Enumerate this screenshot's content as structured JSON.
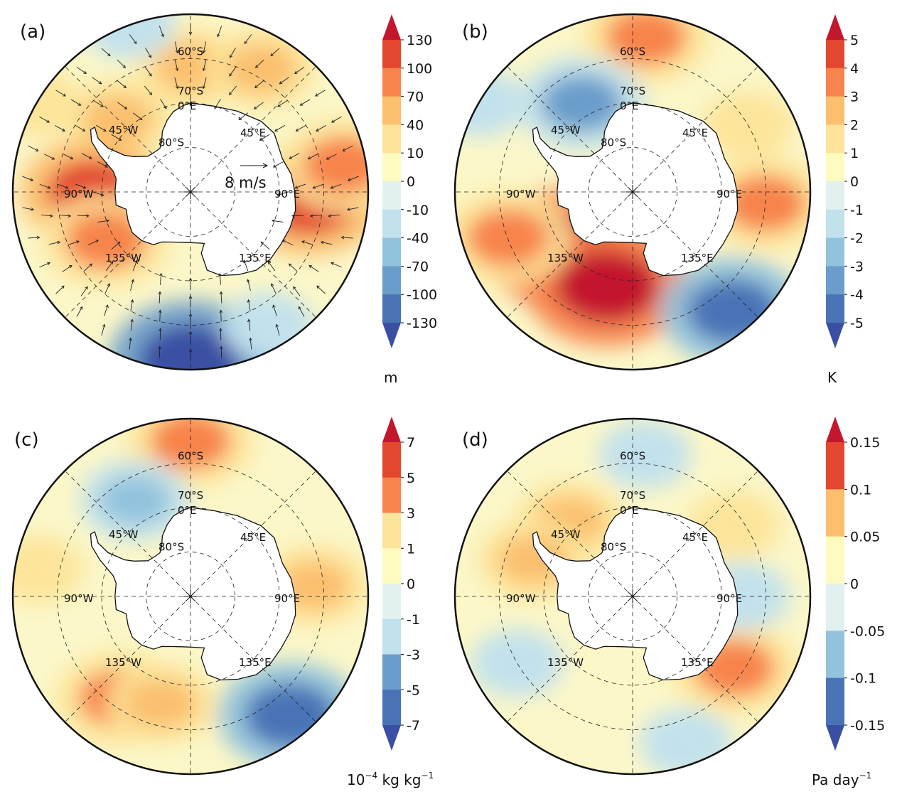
{
  "panels": [
    {
      "id": "a",
      "label": "(a)",
      "unit": "m",
      "unit_sup": "",
      "unit_after": "",
      "colorbar_ticks": [
        "130",
        "100",
        "70",
        "40",
        "10",
        "0",
        "-10",
        "-40",
        "-70",
        "-100",
        "-130"
      ],
      "vector_reference": "8 m/s",
      "has_vectors": true,
      "anomalies": [
        {
          "lon": 0,
          "lat": -62,
          "level": 2
        },
        {
          "lon": 30,
          "lat": -58,
          "level": 2
        },
        {
          "lon": -45,
          "lat": -67,
          "level": 2
        },
        {
          "lon": -90,
          "lat": -68,
          "level": 4
        },
        {
          "lon": -120,
          "lat": -68,
          "level": 3
        },
        {
          "lon": 95,
          "lat": -63,
          "level": 4
        },
        {
          "lon": 80,
          "lat": -55,
          "level": 3
        },
        {
          "lon": 165,
          "lat": -50,
          "level": -2
        },
        {
          "lon": 180,
          "lat": -52,
          "level": -5
        },
        {
          "lon": 150,
          "lat": -55,
          "level": -1
        },
        {
          "lon": -60,
          "lat": -50,
          "level": 1
        },
        {
          "lon": -20,
          "lat": -50,
          "level": -1
        }
      ]
    },
    {
      "id": "b",
      "label": "(b)",
      "unit": "K",
      "unit_sup": "",
      "unit_after": "",
      "colorbar_ticks": [
        "5",
        "4",
        "3",
        "2",
        "1",
        "0",
        "-1",
        "-2",
        "-3",
        "-4",
        "-5"
      ],
      "vector_reference": "",
      "has_vectors": false,
      "anomalies": [
        {
          "lon": 5,
          "lat": -55,
          "level": 3
        },
        {
          "lon": -30,
          "lat": -67,
          "level": -3
        },
        {
          "lon": -130,
          "lat": -70,
          "level": 5
        },
        {
          "lon": -165,
          "lat": -68,
          "level": 5
        },
        {
          "lon": -110,
          "lat": -60,
          "level": 3
        },
        {
          "lon": 95,
          "lat": -60,
          "level": 3
        },
        {
          "lon": 140,
          "lat": -55,
          "level": -4
        },
        {
          "lon": 60,
          "lat": -60,
          "level": 1
        },
        {
          "lon": -60,
          "lat": -50,
          "level": -1
        }
      ]
    },
    {
      "id": "c",
      "label": "(c)",
      "unit": "10",
      "unit_sup": "−4",
      "unit_after": " kg kg",
      "unit_sup2": "−1",
      "colorbar_ticks": [
        "7",
        "5",
        "3",
        "1",
        "0",
        "-1",
        "-3",
        "-5",
        "-7"
      ],
      "vector_reference": "",
      "has_vectors": false,
      "anomalies": [
        {
          "lon": 0,
          "lat": -55,
          "level": 3
        },
        {
          "lon": -30,
          "lat": -65,
          "level": -2
        },
        {
          "lon": -145,
          "lat": -62,
          "level": 3
        },
        {
          "lon": -165,
          "lat": -65,
          "level": 2
        },
        {
          "lon": 85,
          "lat": -62,
          "level": 2
        },
        {
          "lon": 140,
          "lat": -55,
          "level": -4
        },
        {
          "lon": -80,
          "lat": -55,
          "level": 1
        }
      ]
    },
    {
      "id": "d",
      "label": "(d)",
      "unit": "Pa day",
      "unit_sup": "−1",
      "unit_after": "",
      "colorbar_ticks": [
        "0.15",
        "0.1",
        "0.05",
        "0",
        "-0.05",
        "-0.1",
        "-0.15"
      ],
      "vector_reference": "",
      "has_vectors": false,
      "anomalies": [
        {
          "lon": -40,
          "lat": -68,
          "level": 2
        },
        {
          "lon": -70,
          "lat": -66,
          "level": 2
        },
        {
          "lon": 55,
          "lat": -62,
          "level": 1
        },
        {
          "lon": 125,
          "lat": -62,
          "level": 3
        },
        {
          "lon": 5,
          "lat": -58,
          "level": -1
        },
        {
          "lon": 160,
          "lat": -55,
          "level": -1
        },
        {
          "lon": -120,
          "lat": -60,
          "level": -1
        },
        {
          "lon": 90,
          "lat": -65,
          "level": -1
        }
      ]
    }
  ],
  "map_labels": {
    "lat_60": "60°S",
    "lat_70": "70°S",
    "lat_80": "80°S",
    "lon_0": "0°E",
    "lon_45e": "45°E",
    "lon_90e": "90°E",
    "lon_135e": "135°E",
    "lon_45w": "45°W",
    "lon_90w": "90°W",
    "lon_135w": "135°W"
  },
  "colors": {
    "positive": [
      "#fdfbc0",
      "#fde49a",
      "#fbbf6e",
      "#f7844c",
      "#e3472f",
      "#c3172e"
    ],
    "negative": [
      "#e2f1ef",
      "#c1e1ec",
      "#92c3dd",
      "#6b9dcb",
      "#4a73b6",
      "#3a4fa3"
    ],
    "neutral": "#fbf7c9",
    "land": "#ffffff"
  }
}
